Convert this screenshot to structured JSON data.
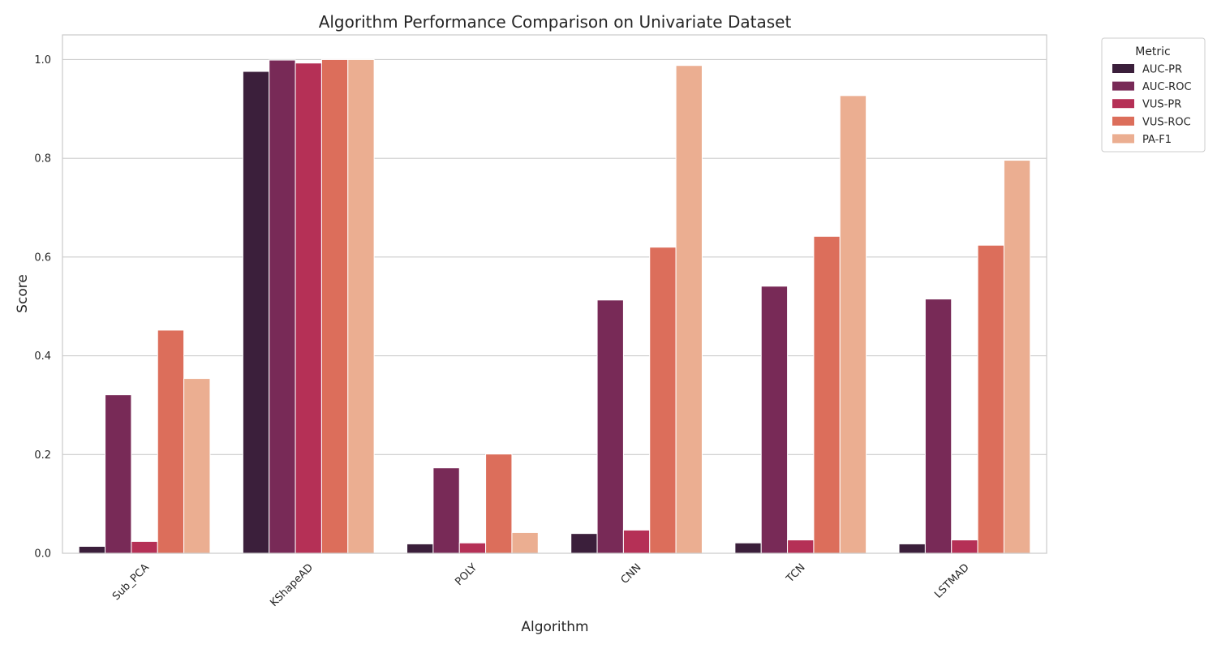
{
  "chart_data": {
    "type": "bar",
    "title": "Algorithm Performance Comparison on Univariate Dataset",
    "xlabel": "Algorithm",
    "ylabel": "Score",
    "ylim": [
      0,
      1.05
    ],
    "yticks": [
      "0.0",
      "0.2",
      "0.4",
      "0.6",
      "0.8",
      "1.0"
    ],
    "ytick_values": [
      0,
      0.2,
      0.4,
      0.6,
      0.8,
      1.0
    ],
    "grid": "horizontal",
    "categories": [
      "Sub_PCA",
      "KShapeAD",
      "POLY",
      "CNN",
      "TCN",
      "LSTMAD"
    ],
    "legend": {
      "title": "Metric",
      "placement": "outside-top-right"
    },
    "series": [
      {
        "name": "AUC-PR",
        "color": "#3b1f3b",
        "values": [
          0.014,
          0.976,
          0.019,
          0.04,
          0.021,
          0.019
        ]
      },
      {
        "name": "AUC-ROC",
        "color": "#782a57",
        "values": [
          0.321,
          0.999,
          0.173,
          0.513,
          0.541,
          0.515
        ]
      },
      {
        "name": "VUS-PR",
        "color": "#b53056",
        "values": [
          0.024,
          0.993,
          0.021,
          0.047,
          0.027,
          0.027
        ]
      },
      {
        "name": "VUS-ROC",
        "color": "#dc6e5b",
        "values": [
          0.452,
          1.0,
          0.201,
          0.62,
          0.642,
          0.624
        ]
      },
      {
        "name": "PA-F1",
        "color": "#ebae91",
        "values": [
          0.354,
          1.0,
          0.042,
          0.988,
          0.927,
          0.796
        ]
      }
    ]
  }
}
